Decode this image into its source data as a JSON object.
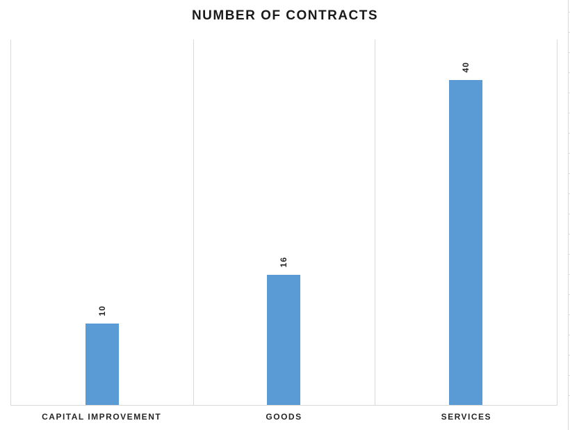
{
  "chart_data": {
    "type": "bar",
    "title": "NUMBER OF CONTRACTS",
    "categories": [
      "CAPITAL IMPROVEMENT",
      "GOODS",
      "SERVICES"
    ],
    "values": [
      10,
      16,
      40
    ],
    "data_labels": [
      "10",
      "16",
      "40"
    ],
    "data_label_rotation": -90,
    "xlabel": "",
    "ylabel": "",
    "ylim": [
      0,
      45
    ],
    "y_axis_ticks_visible": false,
    "grid": "vertical-category-separators",
    "legend": "none",
    "background": "#FFFFFF",
    "bar_color": "#5B9BD5",
    "gridline_color": "#D9D9D9",
    "axis_line_color": "#D9D9D9",
    "title_color": "#1A1A1A",
    "label_color": "#262626"
  }
}
